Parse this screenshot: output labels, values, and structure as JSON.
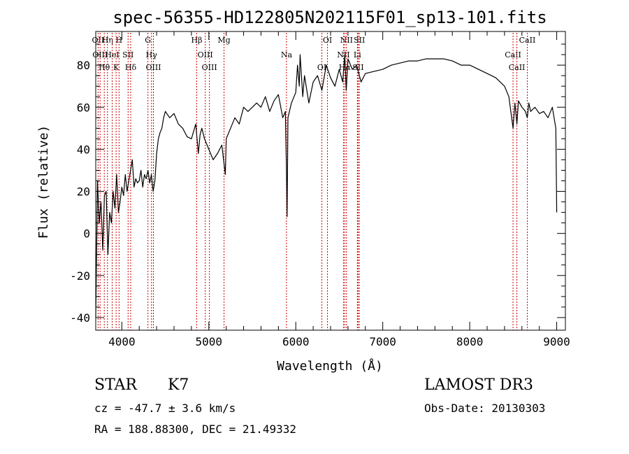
{
  "chart_data": {
    "type": "line",
    "title": "spec-56355-HD122805N202115F01_sp13-101.fits",
    "xlabel": "Wavelength (Å)",
    "ylabel": "Flux (relative)",
    "xlim": [
      3700,
      9100
    ],
    "ylim": [
      -46,
      96
    ],
    "xticks": [
      4000,
      5000,
      6000,
      7000,
      8000,
      9000
    ],
    "yticks": [
      -40,
      -20,
      0,
      20,
      40,
      60,
      80
    ],
    "line_color": "#000000",
    "marker_color": "#cc0000",
    "spectrum": {
      "x": [
        3700,
        3720,
        3740,
        3760,
        3780,
        3800,
        3820,
        3840,
        3860,
        3880,
        3900,
        3920,
        3940,
        3960,
        3980,
        4000,
        4020,
        4040,
        4060,
        4080,
        4100,
        4120,
        4140,
        4160,
        4180,
        4200,
        4220,
        4240,
        4260,
        4280,
        4300,
        4320,
        4340,
        4360,
        4380,
        4400,
        4420,
        4440,
        4460,
        4480,
        4500,
        4550,
        4600,
        4650,
        4700,
        4750,
        4800,
        4850,
        4880,
        4900,
        4920,
        4950,
        5000,
        5050,
        5100,
        5150,
        5170,
        5190,
        5200,
        5250,
        5300,
        5350,
        5400,
        5450,
        5500,
        5550,
        5600,
        5650,
        5700,
        5750,
        5800,
        5850,
        5880,
        5893,
        5900,
        5910,
        5950,
        6000,
        6020,
        6040,
        6050,
        6080,
        6100,
        6150,
        6200,
        6250,
        6300,
        6350,
        6400,
        6450,
        6500,
        6540,
        6563,
        6580,
        6600,
        6650,
        6700,
        6750,
        6800,
        6900,
        7000,
        7100,
        7200,
        7300,
        7400,
        7500,
        7600,
        7700,
        7800,
        7900,
        8000,
        8100,
        8200,
        8300,
        8400,
        8450,
        8498,
        8520,
        8542,
        8560,
        8600,
        8640,
        8662,
        8680,
        8700,
        8750,
        8800,
        8850,
        8900,
        8950,
        8990,
        9000
      ],
      "y": [
        -40,
        25,
        5,
        15,
        -8,
        18,
        20,
        -10,
        10,
        5,
        20,
        12,
        28,
        10,
        15,
        22,
        18,
        28,
        20,
        25,
        30,
        35,
        22,
        26,
        24,
        25,
        30,
        22,
        28,
        26,
        30,
        24,
        28,
        20,
        25,
        38,
        45,
        48,
        50,
        55,
        58,
        55,
        57,
        52,
        50,
        46,
        45,
        52,
        38,
        47,
        50,
        45,
        40,
        35,
        38,
        42,
        35,
        28,
        45,
        50,
        55,
        52,
        60,
        58,
        60,
        62,
        60,
        65,
        58,
        63,
        66,
        55,
        58,
        30,
        8,
        55,
        62,
        67,
        80,
        70,
        85,
        65,
        75,
        62,
        72,
        75,
        68,
        80,
        74,
        70,
        78,
        72,
        85,
        68,
        83,
        78,
        80,
        72,
        76,
        77,
        78,
        80,
        81,
        82,
        82,
        83,
        83,
        83,
        82,
        80,
        80,
        78,
        76,
        74,
        70,
        65,
        50,
        62,
        52,
        63,
        60,
        58,
        55,
        62,
        58,
        60,
        57,
        58,
        55,
        60,
        50,
        10
      ]
    },
    "lines": [
      {
        "w": 3727,
        "label": "OII"
      },
      {
        "w": 3750,
        "label": "OIII"
      },
      {
        "w": 3798,
        "label": "Hθ"
      },
      {
        "w": 3835,
        "label": "Hη"
      },
      {
        "w": 3889,
        "label": "HeI"
      },
      {
        "w": 3934,
        "label": "K"
      },
      {
        "w": 3968,
        "label": "H"
      },
      {
        "w": 4072,
        "label": "SII"
      },
      {
        "w": 4102,
        "label": "Hδ"
      },
      {
        "w": 4300,
        "label": "G"
      },
      {
        "w": 4341,
        "label": "Hγ"
      },
      {
        "w": 4363,
        "label": "OIII"
      },
      {
        "w": 4861,
        "label": "Hβ"
      },
      {
        "w": 4959,
        "label": "OIII"
      },
      {
        "w": 5007,
        "label": "OIII"
      },
      {
        "w": 5175,
        "label": "Mg"
      },
      {
        "w": 5893,
        "label": "Na"
      },
      {
        "w": 6300,
        "label": "OI"
      },
      {
        "w": 6364,
        "label": "OI"
      },
      {
        "w": 6548,
        "label": "NII"
      },
      {
        "w": 6563,
        "label": "Hα"
      },
      {
        "w": 6583,
        "label": "NII"
      },
      {
        "w": 6708,
        "label": "Li"
      },
      {
        "w": 6717,
        "label": "SII"
      },
      {
        "w": 6731,
        "label": "SII"
      },
      {
        "w": 8498,
        "label": "CaII"
      },
      {
        "w": 8542,
        "label": "CaII"
      },
      {
        "w": 8662,
        "label": "CaII"
      }
    ]
  },
  "info": {
    "class_label": "STAR",
    "subclass": "K7",
    "survey": "LAMOST DR3",
    "cz_line": "cz = -47.7 ± 3.6 km/s",
    "obs_date": "Obs-Date: 20130303",
    "coords_line": "RA = 188.88300, DEC =  21.49332"
  }
}
